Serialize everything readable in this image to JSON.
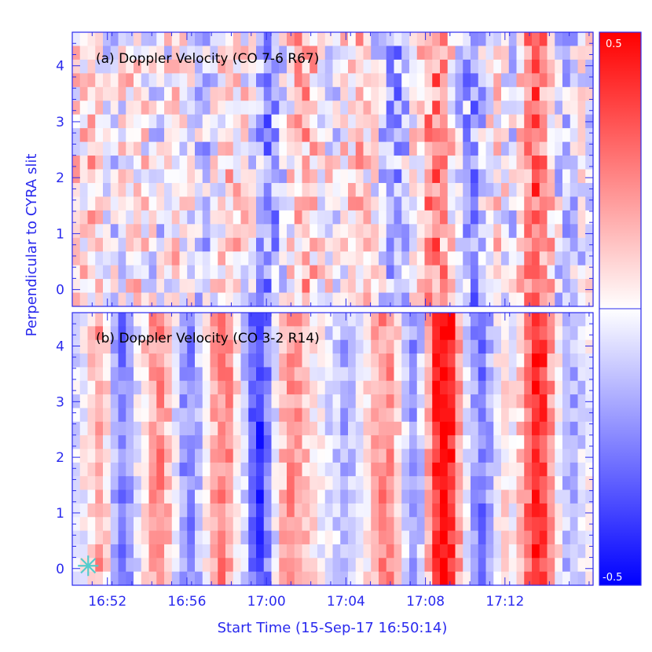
{
  "chart_data": {
    "type": "heatmap",
    "colors": {
      "axis": "#2a2aee",
      "positive": "#ff0000",
      "negative": "#0000ff",
      "neutral": "#ffffff",
      "marker": "#55cccc"
    },
    "xlabel": "Start Time (15-Sep-17 16:50:14)",
    "ylabel": "Perpendicular to CYRA slit",
    "x_tick_labels": [
      "16:52",
      "16:56",
      "17:00",
      "17:04",
      "17:08",
      "17:12"
    ],
    "x_tick_minutes": [
      1.767,
      5.767,
      9.767,
      13.767,
      17.767,
      21.767
    ],
    "xlim_minutes": [
      0,
      26.2
    ],
    "y_tick_labels": [
      "0",
      "1",
      "2",
      "3",
      "4"
    ],
    "y_tick_values": [
      0,
      1,
      2,
      3,
      4
    ],
    "ylim": [
      -0.3,
      4.6
    ],
    "colorbar": {
      "max_label": "0.5",
      "min_label": "-0.5",
      "range": [
        -0.5,
        0.5
      ]
    },
    "panels": [
      {
        "title": "(a) Doppler Velocity (CO 7-6 R67)",
        "columns": 68,
        "rows": 20,
        "column_profile": [
          0.05,
          0.06,
          0.1,
          0.02,
          -0.03,
          -0.06,
          0.0,
          0.04,
          0.06,
          0.03,
          -0.03,
          -0.05,
          0.0,
          0.06,
          0.02,
          -0.03,
          -0.07,
          -0.1,
          -0.02,
          0.04,
          0.1,
          0.08,
          0.02,
          -0.05,
          -0.15,
          -0.22,
          -0.16,
          -0.05,
          0.05,
          0.12,
          0.14,
          0.1,
          0.04,
          0.0,
          -0.03,
          0.03,
          0.08,
          0.12,
          0.06,
          -0.02,
          -0.08,
          -0.14,
          -0.18,
          -0.1,
          0.02,
          0.1,
          0.2,
          0.24,
          0.18,
          0.05,
          -0.08,
          -0.16,
          -0.2,
          -0.1,
          0.02,
          0.05,
          0.0,
          -0.05,
          0.05,
          0.2,
          0.3,
          0.24,
          0.1,
          -0.06,
          -0.12,
          -0.08,
          -0.04,
          -0.02
        ],
        "amplitude": 0.5,
        "noise": 0.35,
        "seed": 7
      },
      {
        "title": "(b) Doppler Velocity (CO 3-2 R14)",
        "columns": 68,
        "rows": 20,
        "column_profile": [
          -0.05,
          0.0,
          0.08,
          0.18,
          0.05,
          -0.15,
          -0.25,
          -0.18,
          -0.05,
          0.08,
          0.18,
          0.22,
          0.12,
          -0.05,
          -0.2,
          -0.22,
          -0.12,
          0.02,
          0.15,
          0.24,
          0.2,
          0.05,
          -0.1,
          -0.3,
          -0.38,
          -0.25,
          -0.05,
          0.12,
          0.2,
          0.18,
          0.1,
          0.04,
          0.0,
          -0.06,
          -0.1,
          -0.16,
          -0.12,
          -0.04,
          0.05,
          0.15,
          0.22,
          0.2,
          0.08,
          -0.08,
          -0.2,
          -0.1,
          0.15,
          0.4,
          0.5,
          0.42,
          0.18,
          -0.05,
          -0.2,
          -0.26,
          -0.15,
          -0.02,
          0.05,
          0.0,
          0.1,
          0.28,
          0.42,
          0.38,
          0.2,
          0.02,
          -0.12,
          -0.15,
          -0.08,
          -0.02
        ],
        "amplitude": 0.5,
        "noise": 0.2,
        "seed": 11
      }
    ],
    "marker": {
      "symbol": "asterisk",
      "x_minutes": 0.8,
      "y": 0.05,
      "panel": 1
    }
  }
}
